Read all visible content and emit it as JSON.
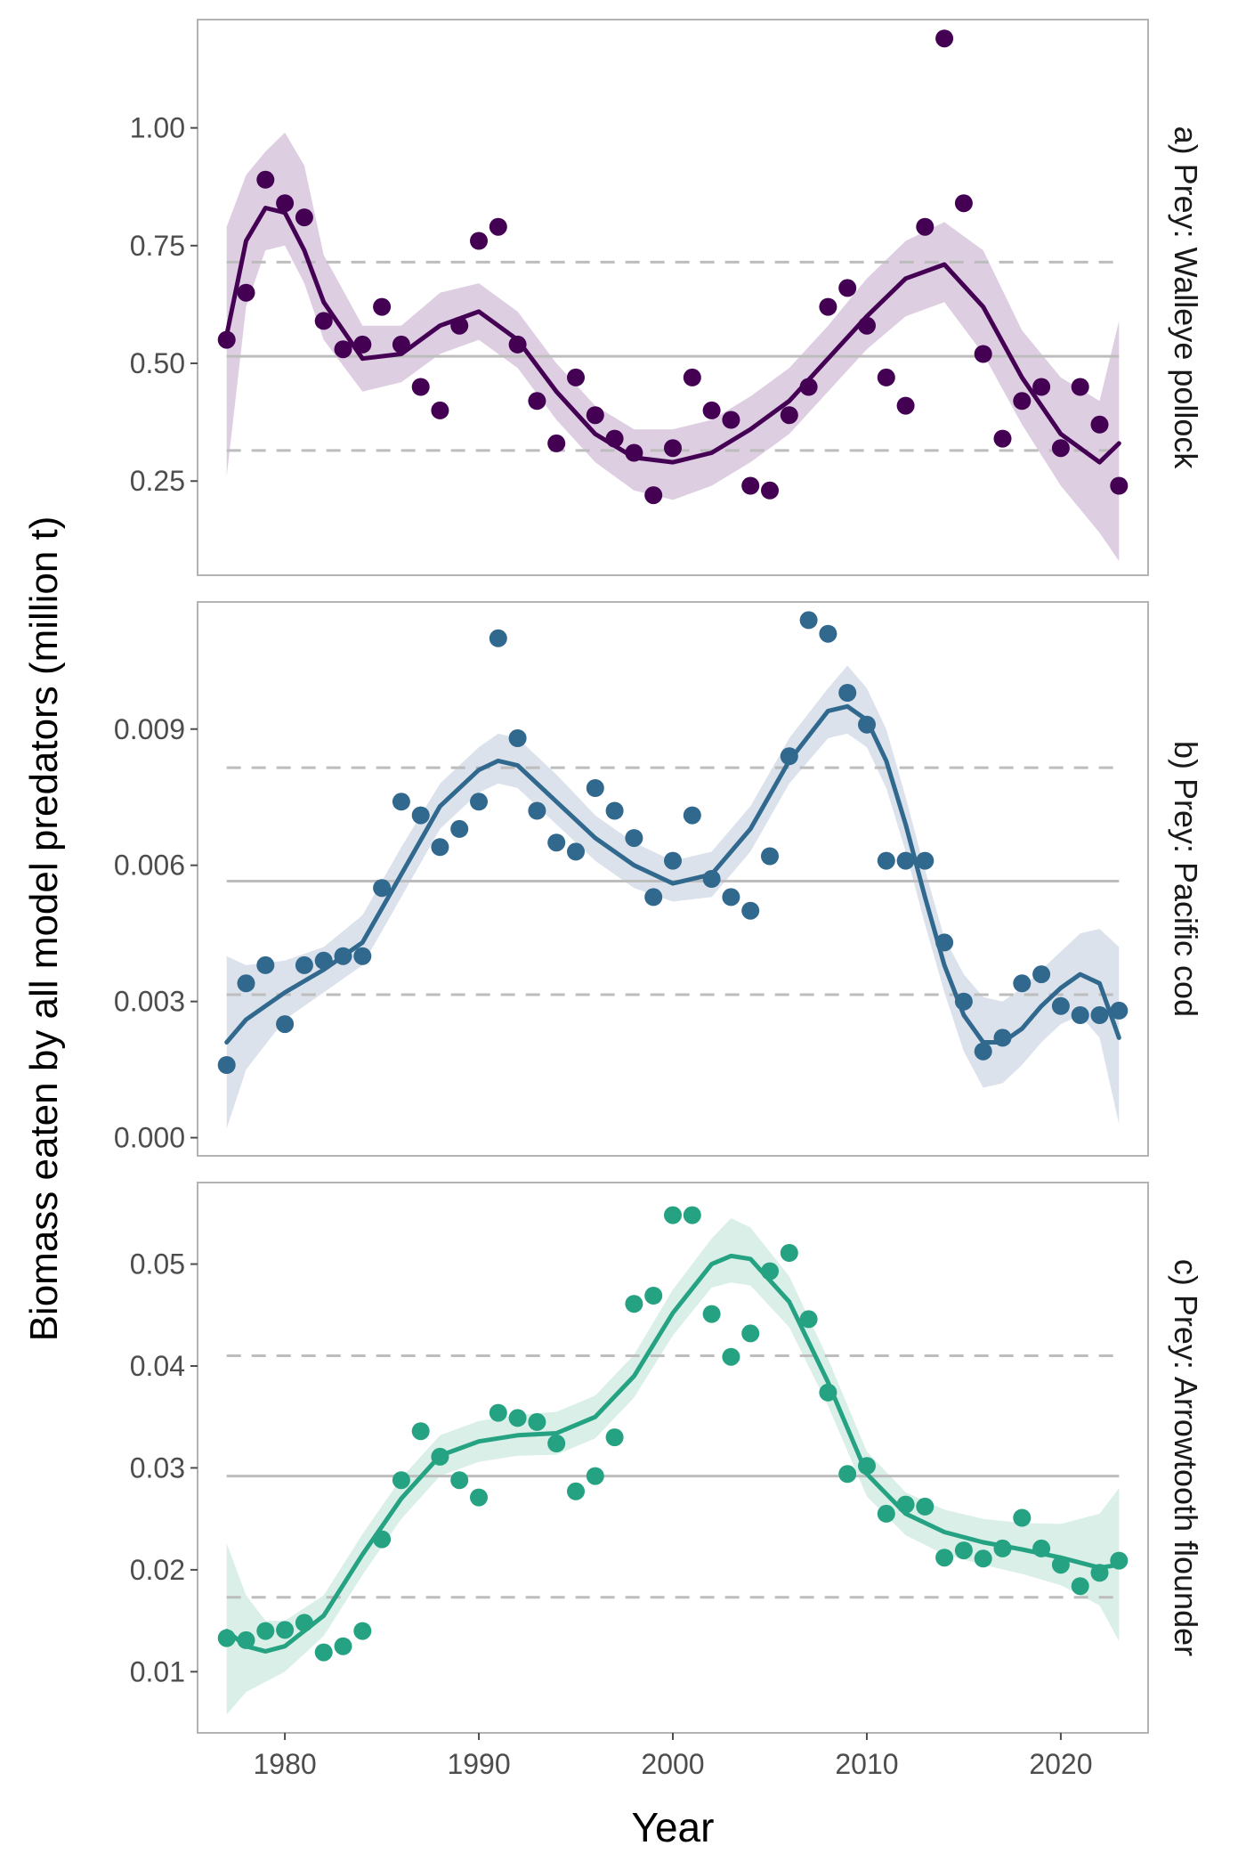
{
  "chart_data": {
    "type": "scatter",
    "xlabel": "Year",
    "ylabel": "Biomass eaten by all model predators (million t)",
    "xlim": [
      1975.5,
      2024.5
    ],
    "xticks": [
      1980,
      1990,
      2000,
      2010,
      2020
    ],
    "panels": [
      {
        "strip": "a) Prey: Walleye pollock",
        "color": "#440154",
        "band_color": "#d8c6dd",
        "ylim": [
          0.05,
          1.23
        ],
        "yticks": [
          0.25,
          0.5,
          0.75,
          1.0
        ],
        "ytick_labels": [
          "0.25",
          "0.50",
          "0.75",
          "1.00"
        ],
        "mean": 0.515,
        "lower_ref": 0.315,
        "upper_ref": 0.715,
        "x": [
          1977,
          1978,
          1979,
          1980,
          1981,
          1982,
          1983,
          1984,
          1985,
          1986,
          1987,
          1988,
          1989,
          1990,
          1991,
          1992,
          1993,
          1994,
          1995,
          1996,
          1997,
          1998,
          1999,
          2000,
          2001,
          2002,
          2003,
          2004,
          2005,
          2006,
          2007,
          2008,
          2009,
          2010,
          2011,
          2012,
          2013,
          2014,
          2015,
          2016,
          2017,
          2018,
          2019,
          2020,
          2021,
          2022,
          2023
        ],
        "y": [
          0.55,
          0.65,
          0.89,
          0.84,
          0.81,
          0.59,
          0.53,
          0.54,
          0.62,
          0.54,
          0.45,
          0.4,
          0.58,
          0.76,
          0.79,
          0.54,
          0.42,
          0.33,
          0.47,
          0.39,
          0.34,
          0.31,
          0.22,
          0.32,
          0.47,
          0.4,
          0.38,
          0.24,
          0.23,
          0.39,
          0.45,
          0.62,
          0.66,
          0.58,
          0.47,
          0.41,
          0.79,
          1.19,
          0.84,
          0.52,
          0.34,
          0.42,
          0.45,
          0.32,
          0.45,
          0.37,
          0.24
        ],
        "smooth": {
          "x": [
            1977,
            1978,
            1979,
            1980,
            1981,
            1982,
            1984,
            1986,
            1988,
            1990,
            1992,
            1994,
            1996,
            1998,
            2000,
            2002,
            2004,
            2006,
            2008,
            2010,
            2012,
            2014,
            2016,
            2018,
            2020,
            2022,
            2023
          ],
          "y": [
            0.56,
            0.76,
            0.83,
            0.82,
            0.74,
            0.63,
            0.51,
            0.52,
            0.58,
            0.61,
            0.55,
            0.44,
            0.35,
            0.3,
            0.29,
            0.31,
            0.36,
            0.42,
            0.51,
            0.6,
            0.68,
            0.71,
            0.62,
            0.47,
            0.35,
            0.29,
            0.33
          ],
          "lo": [
            0.26,
            0.62,
            0.74,
            0.75,
            0.67,
            0.55,
            0.44,
            0.46,
            0.52,
            0.55,
            0.49,
            0.38,
            0.29,
            0.23,
            0.21,
            0.24,
            0.29,
            0.35,
            0.44,
            0.53,
            0.6,
            0.63,
            0.52,
            0.37,
            0.24,
            0.14,
            0.08
          ],
          "hi": [
            0.79,
            0.9,
            0.95,
            0.99,
            0.92,
            0.73,
            0.58,
            0.58,
            0.65,
            0.67,
            0.61,
            0.5,
            0.41,
            0.36,
            0.36,
            0.38,
            0.43,
            0.49,
            0.58,
            0.68,
            0.76,
            0.8,
            0.74,
            0.57,
            0.47,
            0.42,
            0.59
          ]
        }
      },
      {
        "strip": "b) Prey: Pacific cod",
        "color": "#31688e",
        "band_color": "#d5dde8",
        "ylim": [
          -0.0004,
          0.0118
        ],
        "yticks": [
          0.0,
          0.003,
          0.006,
          0.009
        ],
        "ytick_labels": [
          "0.000",
          "0.003",
          "0.006",
          "0.009"
        ],
        "mean": 0.00565,
        "lower_ref": 0.00315,
        "upper_ref": 0.00815,
        "x": [
          1977,
          1978,
          1979,
          1980,
          1981,
          1982,
          1983,
          1984,
          1985,
          1986,
          1987,
          1988,
          1989,
          1990,
          1991,
          1992,
          1993,
          1994,
          1995,
          1996,
          1997,
          1998,
          1999,
          2000,
          2001,
          2002,
          2003,
          2004,
          2005,
          2006,
          2007,
          2008,
          2009,
          2010,
          2011,
          2012,
          2013,
          2014,
          2015,
          2016,
          2017,
          2018,
          2019,
          2020,
          2021,
          2022,
          2023
        ],
        "y": [
          0.0016,
          0.0034,
          0.0038,
          0.0025,
          0.0038,
          0.0039,
          0.004,
          0.004,
          0.0055,
          0.0074,
          0.0071,
          0.0064,
          0.0068,
          0.0074,
          0.011,
          0.0088,
          0.0072,
          0.0065,
          0.0063,
          0.0077,
          0.0072,
          0.0066,
          0.0053,
          0.0061,
          0.0071,
          0.0057,
          0.0053,
          0.005,
          0.0062,
          0.0084,
          0.0114,
          0.0111,
          0.0098,
          0.0091,
          0.0061,
          0.0061,
          0.0061,
          0.0043,
          0.003,
          0.0019,
          0.0022,
          0.0034,
          0.0036,
          0.0029,
          0.0027,
          0.0027,
          0.0028
        ],
        "smooth": {
          "x": [
            1977,
            1978,
            1980,
            1982,
            1984,
            1986,
            1988,
            1990,
            1991,
            1992,
            1994,
            1996,
            1998,
            2000,
            2002,
            2004,
            2006,
            2008,
            2009,
            2010,
            2011,
            2012,
            2013,
            2014,
            2015,
            2016,
            2017,
            2018,
            2019,
            2020,
            2021,
            2022,
            2023
          ],
          "y": [
            0.0021,
            0.0026,
            0.0032,
            0.0037,
            0.0043,
            0.0058,
            0.0073,
            0.0081,
            0.0083,
            0.0082,
            0.0074,
            0.0066,
            0.006,
            0.0056,
            0.0058,
            0.0068,
            0.0083,
            0.0094,
            0.0095,
            0.0092,
            0.0083,
            0.0069,
            0.0053,
            0.0038,
            0.0027,
            0.0021,
            0.0021,
            0.0024,
            0.0029,
            0.0033,
            0.0036,
            0.0034,
            0.0022
          ],
          "lo": [
            0.0002,
            0.0015,
            0.0026,
            0.0032,
            0.0038,
            0.0053,
            0.0068,
            0.0076,
            0.0078,
            0.0077,
            0.0069,
            0.0061,
            0.0055,
            0.0052,
            0.0053,
            0.0063,
            0.0078,
            0.0088,
            0.0089,
            0.0086,
            0.0077,
            0.0063,
            0.0047,
            0.0032,
            0.0019,
            0.0011,
            0.0012,
            0.0016,
            0.0021,
            0.0025,
            0.0027,
            0.0022,
            0.0003
          ],
          "hi": [
            0.004,
            0.0038,
            0.0039,
            0.0042,
            0.0049,
            0.0064,
            0.0078,
            0.0086,
            0.0089,
            0.0088,
            0.008,
            0.0071,
            0.0065,
            0.0061,
            0.0063,
            0.0073,
            0.0088,
            0.0099,
            0.0104,
            0.0099,
            0.009,
            0.0075,
            0.0059,
            0.0044,
            0.0036,
            0.0031,
            0.003,
            0.0033,
            0.0037,
            0.0041,
            0.0045,
            0.0046,
            0.0042
          ]
        }
      },
      {
        "strip": "c) Prey: Arrowtooth flounder",
        "color": "#25a282",
        "band_color": "#d2ece4",
        "ylim": [
          0.004,
          0.058
        ],
        "yticks": [
          0.01,
          0.02,
          0.03,
          0.04,
          0.05
        ],
        "ytick_labels": [
          "0.01",
          "0.02",
          "0.03",
          "0.04",
          "0.05"
        ],
        "mean": 0.0292,
        "lower_ref": 0.0173,
        "upper_ref": 0.041,
        "x": [
          1977,
          1978,
          1979,
          1980,
          1981,
          1982,
          1983,
          1984,
          1985,
          1986,
          1987,
          1988,
          1989,
          1990,
          1991,
          1992,
          1993,
          1994,
          1995,
          1996,
          1997,
          1998,
          1999,
          2000,
          2001,
          2002,
          2003,
          2004,
          2005,
          2006,
          2007,
          2008,
          2009,
          2010,
          2011,
          2012,
          2013,
          2014,
          2015,
          2016,
          2017,
          2018,
          2019,
          2020,
          2021,
          2022,
          2023
        ],
        "y": [
          0.0133,
          0.0131,
          0.014,
          0.0141,
          0.0148,
          0.0119,
          0.0125,
          0.014,
          0.023,
          0.0288,
          0.0336,
          0.0311,
          0.0288,
          0.0271,
          0.0354,
          0.0349,
          0.0345,
          0.0324,
          0.0277,
          0.0292,
          0.033,
          0.0461,
          0.0469,
          0.0548,
          0.0548,
          0.0451,
          0.0409,
          0.0432,
          0.0493,
          0.0511,
          0.0446,
          0.0374,
          0.0294,
          0.0302,
          0.0255,
          0.0264,
          0.0262,
          0.0212,
          0.0219,
          0.0211,
          0.0221,
          0.0251,
          0.0221,
          0.0205,
          0.0184,
          0.0197,
          0.0209
        ],
        "smooth": {
          "x": [
            1977,
            1978,
            1979,
            1980,
            1982,
            1984,
            1986,
            1988,
            1990,
            1992,
            1994,
            1996,
            1998,
            2000,
            2002,
            2003,
            2004,
            2006,
            2008,
            2010,
            2012,
            2014,
            2016,
            2018,
            2020,
            2022,
            2023
          ],
          "y": [
            0.014,
            0.0125,
            0.012,
            0.0125,
            0.0155,
            0.0215,
            0.027,
            0.0312,
            0.0326,
            0.0332,
            0.0334,
            0.035,
            0.039,
            0.0452,
            0.05,
            0.0508,
            0.0505,
            0.0463,
            0.0384,
            0.0294,
            0.0255,
            0.0237,
            0.0227,
            0.022,
            0.0212,
            0.0202,
            0.0205
          ],
          "lo": [
            0.0058,
            0.008,
            0.009,
            0.01,
            0.0135,
            0.0195,
            0.025,
            0.0292,
            0.0306,
            0.0312,
            0.0313,
            0.0329,
            0.0369,
            0.043,
            0.0477,
            0.0482,
            0.0479,
            0.0438,
            0.0361,
            0.0272,
            0.0234,
            0.0215,
            0.0205,
            0.0196,
            0.0185,
            0.0165,
            0.013
          ],
          "hi": [
            0.0226,
            0.0175,
            0.015,
            0.015,
            0.0175,
            0.0235,
            0.029,
            0.0332,
            0.0346,
            0.0352,
            0.0355,
            0.0371,
            0.0411,
            0.0475,
            0.0525,
            0.0545,
            0.0536,
            0.0488,
            0.0407,
            0.0316,
            0.0276,
            0.0259,
            0.025,
            0.0246,
            0.0245,
            0.0255,
            0.028
          ]
        }
      }
    ]
  }
}
